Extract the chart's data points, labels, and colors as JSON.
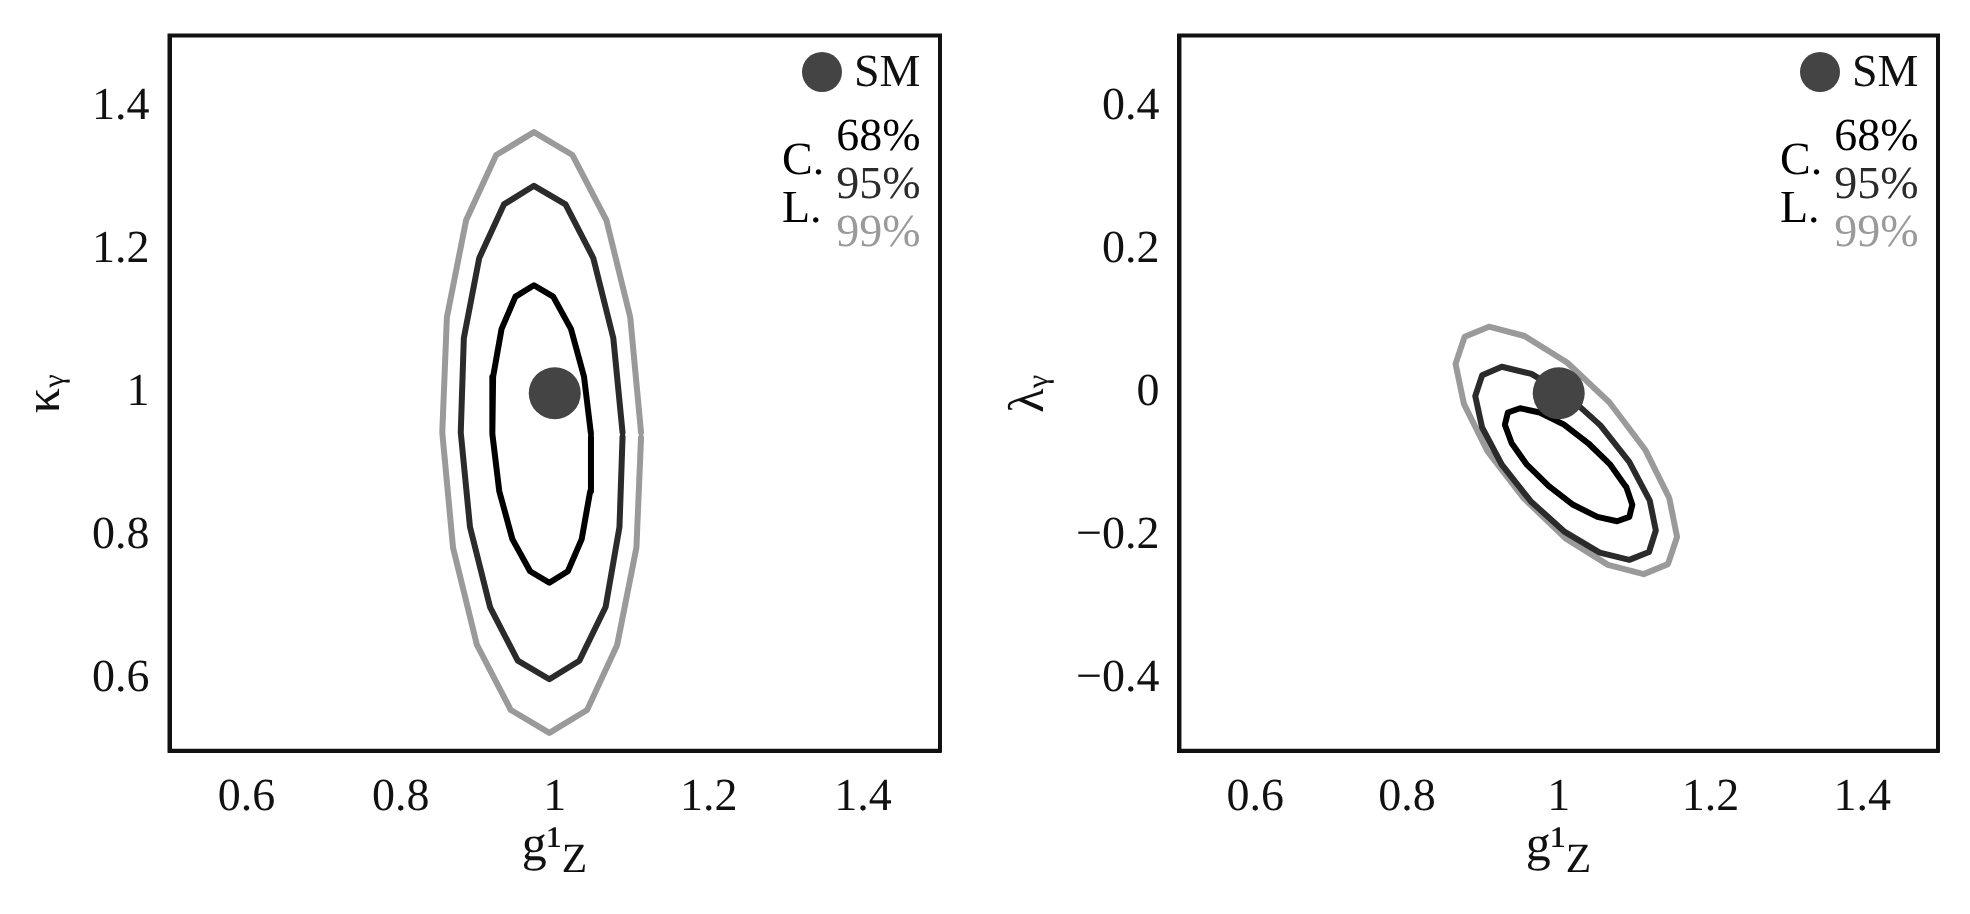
{
  "chart_data": [
    {
      "type": "line",
      "xlabel": "g¹$_{Z}$",
      "ylabel": "κᵧ",
      "legend_title": "C. L.",
      "legend": "top right",
      "xlim": [
        0.5,
        1.5
      ],
      "ylim": [
        0.5,
        1.5
      ],
      "xticks": [
        0.6,
        0.8,
        1,
        1.2,
        1.4
      ],
      "yticks": [
        0.6,
        0.8,
        1,
        1.2,
        1.4
      ],
      "series": [
        {
          "name": "SM",
          "type": "scatter",
          "marker": "circle",
          "color": "#444444",
          "x": [
            1
          ],
          "values": [
            1
          ]
        },
        {
          "name": "68%",
          "color": "#000000",
          "x": [
            1.047,
            1.038,
            1.021,
            0.998,
            0.973,
            0.949,
            0.931,
            0.92,
            0.919,
            0.928,
            0.945,
            0.968,
            0.993,
            1.017,
            1.035,
            1.046,
            1.047
          ],
          "values": [
            0.943,
            1.023,
            1.09,
            1.135,
            1.151,
            1.135,
            1.09,
            1.023,
            0.943,
            0.863,
            0.796,
            0.751,
            0.735,
            0.751,
            0.796,
            0.863,
            0.939
          ]
        },
        {
          "name": "95%",
          "color": "#2b2b2b",
          "x": [
            1.088,
            1.076,
            1.05,
            1.014,
            0.973,
            0.934,
            0.902,
            0.882,
            0.878,
            0.89,
            0.916,
            0.952,
            0.993,
            1.032,
            1.066,
            1.084,
            1.088
          ],
          "values": [
            0.945,
            1.077,
            1.189,
            1.264,
            1.29,
            1.264,
            1.189,
            1.077,
            0.945,
            0.813,
            0.701,
            0.626,
            0.6,
            0.626,
            0.701,
            0.813,
            0.939
          ]
        },
        {
          "name": "99%",
          "color": "#9a9a9a",
          "x": [
            1.112,
            1.098,
            1.067,
            1.023,
            0.973,
            0.924,
            0.885,
            0.86,
            0.854,
            0.868,
            0.899,
            0.943,
            0.993,
            1.042,
            1.081,
            1.106,
            1.112
          ],
          "values": [
            0.945,
            1.106,
            1.242,
            1.333,
            1.365,
            1.333,
            1.242,
            1.106,
            0.945,
            0.784,
            0.648,
            0.557,
            0.525,
            0.557,
            0.648,
            0.784,
            0.938
          ]
        }
      ]
    },
    {
      "type": "line",
      "xlabel": "g¹$_{Z}$",
      "ylabel": "λᵧ",
      "legend_title": "C. L.",
      "legend": "top right",
      "xlim": [
        0.5,
        1.5
      ],
      "ylim": [
        -0.5,
        0.5
      ],
      "xticks": [
        0.6,
        0.8,
        1,
        1.2,
        1.4
      ],
      "yticks": [
        {
          "value": -0.4,
          "label": "−0.4"
        },
        {
          "value": -0.2,
          "label": "−0.2"
        },
        0,
        0.2,
        0.4
      ],
      "series": [
        {
          "name": "SM",
          "type": "scatter",
          "marker": "circle",
          "color": "#444444",
          "x": [
            1
          ],
          "values": [
            0
          ]
        },
        {
          "name": "68%",
          "color": "#000000",
          "x": [
            1.088,
            1.068,
            1.039,
            1.007,
            0.975,
            0.949,
            0.933,
            0.929,
            0.938,
            0.958,
            0.987,
            1.019,
            1.051,
            1.077,
            1.093,
            1.097,
            1.089
          ],
          "values": [
            -0.13,
            -0.1,
            -0.07,
            -0.044,
            -0.027,
            -0.021,
            -0.027,
            -0.044,
            -0.07,
            -0.1,
            -0.13,
            -0.156,
            -0.173,
            -0.179,
            -0.173,
            -0.156,
            -0.131
          ]
        },
        {
          "name": "95%",
          "color": "#2b2b2b",
          "x": [
            1.119,
            1.093,
            1.055,
            1.01,
            0.964,
            0.925,
            0.899,
            0.89,
            0.899,
            0.925,
            0.963,
            1.008,
            1.054,
            1.093,
            1.119,
            1.128,
            1.12
          ],
          "values": [
            -0.148,
            -0.096,
            -0.045,
            -0.002,
            0.027,
            0.037,
            0.025,
            -0.004,
            -0.048,
            -0.1,
            -0.151,
            -0.194,
            -0.223,
            -0.233,
            -0.222,
            -0.192,
            -0.15
          ]
        },
        {
          "name": "99%",
          "color": "#9a9a9a",
          "x": [
            1.145,
            1.114,
            1.067,
            1.011,
            0.955,
            0.908,
            0.876,
            0.864,
            0.875,
            0.906,
            0.954,
            1.009,
            1.065,
            1.112,
            1.144,
            1.156,
            1.146
          ],
          "values": [
            -0.145,
            -0.079,
            -0.013,
            0.043,
            0.08,
            0.093,
            0.079,
            0.041,
            -0.015,
            -0.081,
            -0.147,
            -0.203,
            -0.24,
            -0.253,
            -0.239,
            -0.201,
            -0.148
          ]
        }
      ]
    }
  ]
}
